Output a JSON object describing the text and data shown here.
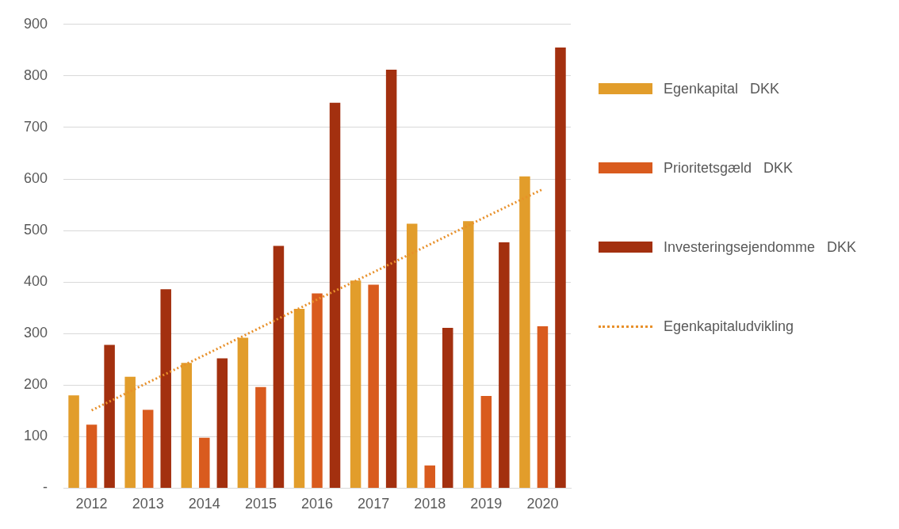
{
  "chart_data": {
    "type": "bar",
    "categories": [
      "2012",
      "2013",
      "2014",
      "2015",
      "2016",
      "2017",
      "2018",
      "2019",
      "2020"
    ],
    "series": [
      {
        "name": "Egenkapital   DKK",
        "color": "#e29d2b",
        "values": [
          180,
          216,
          243,
          292,
          348,
          403,
          513,
          518,
          605
        ]
      },
      {
        "name": "Prioritetsgæld   DKK",
        "color": "#d95b1e",
        "values": [
          123,
          152,
          98,
          196,
          378,
          395,
          44,
          179,
          314
        ]
      },
      {
        "name": "Investeringsejendomme   DKK",
        "color": "#a3300f",
        "values": [
          278,
          386,
          252,
          470,
          748,
          812,
          311,
          477,
          855
        ]
      },
      {
        "name": "Egenkapitaludvikling",
        "type": "line",
        "color": "#e8902a",
        "line_style": "dotted",
        "marker": "none",
        "values": [
          151,
          205,
          258,
          312,
          366,
          419,
          473,
          527,
          580
        ]
      }
    ],
    "ylim": [
      0,
      900
    ],
    "yticks": [
      {
        "value": 0,
        "label": "-"
      },
      100,
      200,
      300,
      400,
      500,
      600,
      700,
      800,
      900
    ],
    "grid": "y",
    "legend": "right"
  }
}
